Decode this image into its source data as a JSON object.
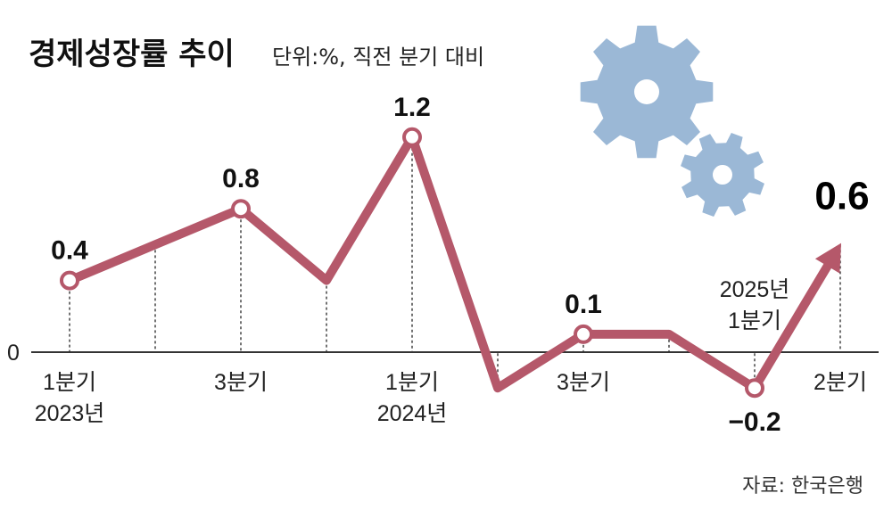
{
  "chart_data": {
    "type": "line",
    "title": "경제성장률 추이",
    "unit_note": "단위:%, 직전 분기 대비",
    "source": "자료: 한국은행",
    "categories": [
      "2023 Q1",
      "2023 Q2",
      "2023 Q3",
      "2023 Q4",
      "2024 Q1",
      "2024 Q2",
      "2024 Q3",
      "2024 Q4",
      "2025 Q1",
      "2025 Q2"
    ],
    "values": [
      0.4,
      0.6,
      0.8,
      0.4,
      1.2,
      -0.2,
      0.1,
      0.1,
      -0.2,
      0.6
    ],
    "x_tick_labels": [
      {
        "index": 0,
        "lines": [
          "1분기",
          "2023년"
        ]
      },
      {
        "index": 2,
        "lines": [
          "3분기"
        ]
      },
      {
        "index": 4,
        "lines": [
          "1분기",
          "2024년"
        ]
      },
      {
        "index": 6,
        "lines": [
          "3분기"
        ]
      },
      {
        "index": 8,
        "lines": [
          "2025년",
          "1분기"
        ]
      },
      {
        "index": 9,
        "lines": [
          "2분기"
        ]
      }
    ],
    "y_tick_labels": [
      "0"
    ],
    "data_labels": [
      {
        "index": 0,
        "text": "0.4"
      },
      {
        "index": 2,
        "text": "0.8"
      },
      {
        "index": 4,
        "text": "1.2"
      },
      {
        "index": 6,
        "text": "0.1"
      },
      {
        "index": 8,
        "text": "−0.2"
      },
      {
        "index": 9,
        "text": "0.6"
      }
    ],
    "marked_points": [
      0,
      2,
      4,
      6,
      8
    ],
    "highlight_last": true,
    "line_color": "#b5586a",
    "gear_color": "#9bb8d6",
    "grid": false
  }
}
